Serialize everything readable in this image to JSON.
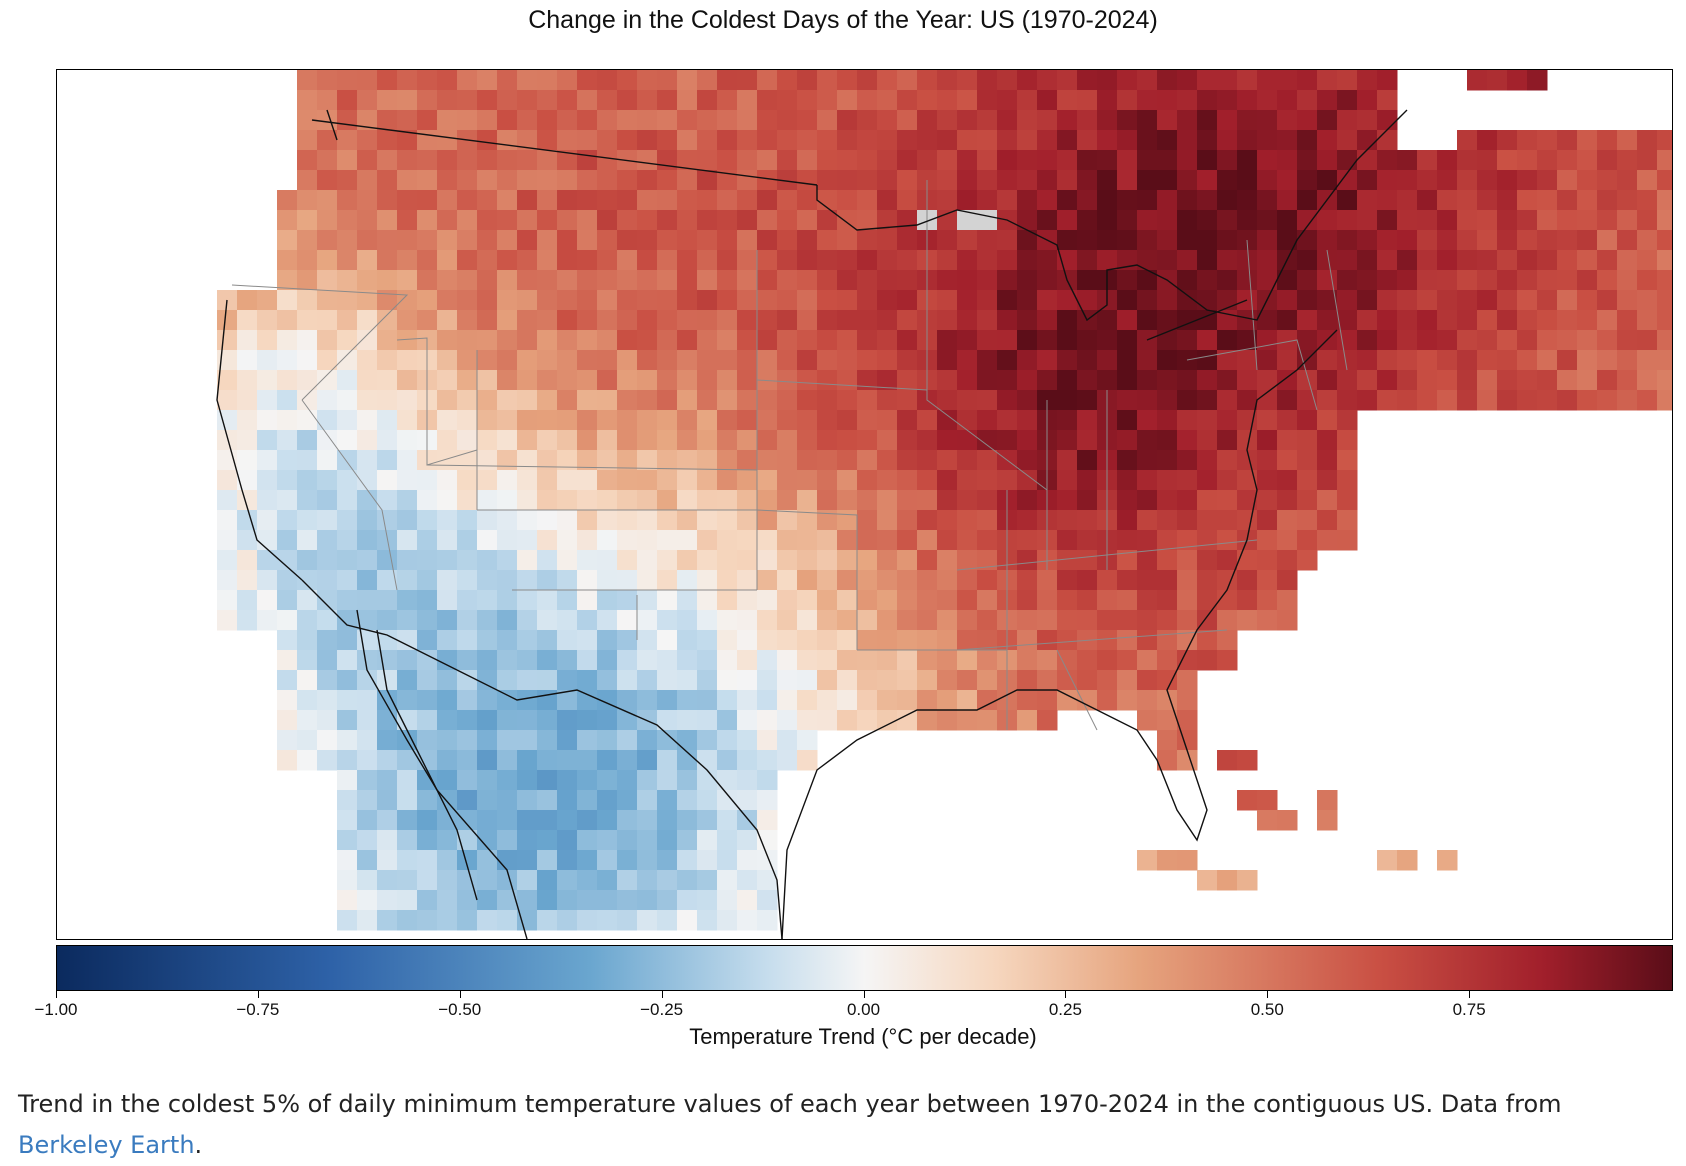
{
  "title": "Change in the Coldest Days of the Year: US (1970-2024)",
  "colorbar": {
    "label": "Temperature Trend (°C per decade)",
    "ticks": [
      "−1.00",
      "−0.75",
      "−0.50",
      "−0.25",
      "0.00",
      "0.25",
      "0.50",
      "0.75"
    ],
    "min": -1.0,
    "max": 1.0,
    "colors": [
      "#0b2a5e",
      "#2e62a8",
      "#6aa6cf",
      "#f5f5f5",
      "#e6a47e",
      "#c94f43",
      "#5a0d18"
    ]
  },
  "caption": {
    "text": "Trend in the coldest 5% of daily minimum temperature values of each year between 1970-2024 in the contiguous US. Data from ",
    "link_text": "Berkeley Earth",
    "end": "."
  },
  "colors": {
    "link": "#3a7bbf",
    "missing_cell": "#d3d3d3"
  }
}
